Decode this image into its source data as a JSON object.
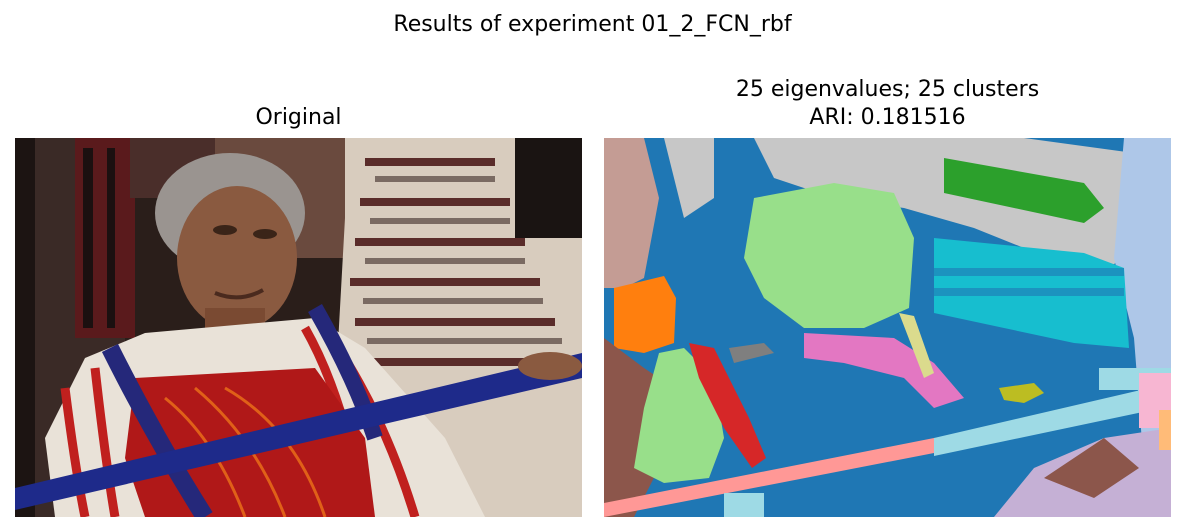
{
  "figure": {
    "suptitle": "Results of experiment 01_2_FCN_rbf"
  },
  "panels": {
    "original": {
      "title": "Original",
      "image_description": "photograph of a woman weaving with woven textiles behind"
    },
    "segmentation": {
      "title_line1": "25 eigenvalues; 25 clusters",
      "title_line2": "ARI: 0.181516",
      "image_description": "spectral clustering segmentation map"
    }
  },
  "colors": {
    "tab_blue": "#1f77b4",
    "tab_orange": "#ff7f0e",
    "tab_green": "#2ca02c",
    "tab_red": "#d62728",
    "light_green": "#98df8a",
    "cyan": "#17becf",
    "light_cyan": "#9edae5",
    "pink": "#e377c2",
    "light_pink": "#f7b6d2",
    "grey": "#c7c7c7",
    "olive": "#bcbd22",
    "light_blue": "#aec7e8",
    "salmon": "#ff9896",
    "brown": "#8c564b",
    "lavender": "#c5b0d5"
  }
}
